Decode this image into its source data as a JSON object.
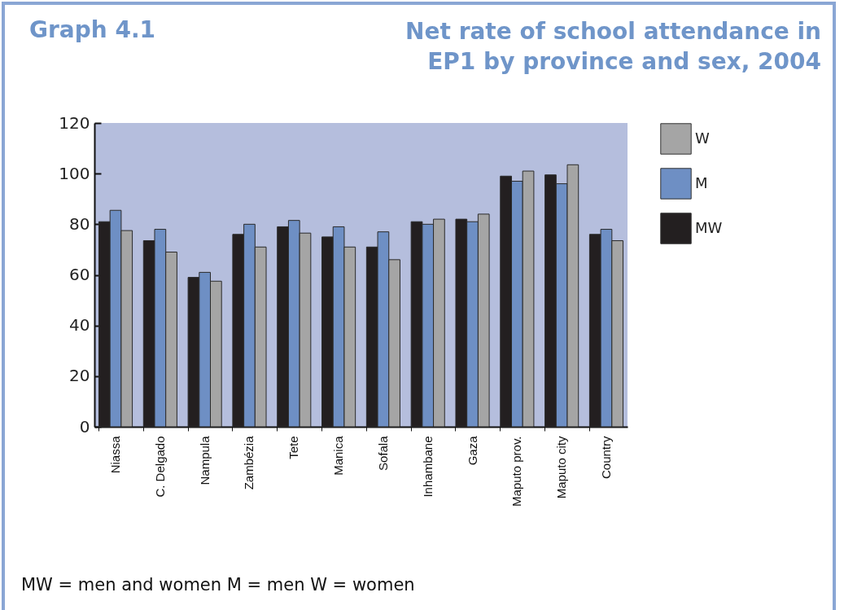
{
  "chart_data": {
    "type": "bar",
    "title": "Net rate of school attendance in EP1 by province and sex, 2004",
    "subtitle": "Graph 4.1",
    "categories": [
      "Niassa",
      "C. Delgado",
      "Nampula",
      "Zambézia",
      "Tete",
      "Manica",
      "Sofala",
      "Inhambane",
      "Gaza",
      "Maputo prov.",
      "Maputo city",
      "Country"
    ],
    "series": [
      {
        "name": "MW",
        "color": "#231f20",
        "values": [
          81,
          73.5,
          59,
          76,
          79,
          75,
          71,
          81,
          82,
          99,
          99.5,
          76
        ]
      },
      {
        "name": "M",
        "color": "#6e8fc4",
        "values": [
          85.5,
          78,
          61,
          80,
          81.5,
          79,
          77,
          80,
          81,
          97,
          96,
          78
        ]
      },
      {
        "name": "W",
        "color": "#a5a5a5",
        "values": [
          77.5,
          69,
          57.5,
          71,
          76.5,
          71,
          66,
          82,
          84,
          101,
          103.5,
          73.5
        ]
      }
    ],
    "ylim": [
      0,
      120
    ],
    "yticks": [
      0,
      20,
      40,
      60,
      80,
      100,
      120
    ],
    "grid": false,
    "legend": "right",
    "annotations": [
      "MW = men and women    M = men    W = women"
    ]
  }
}
